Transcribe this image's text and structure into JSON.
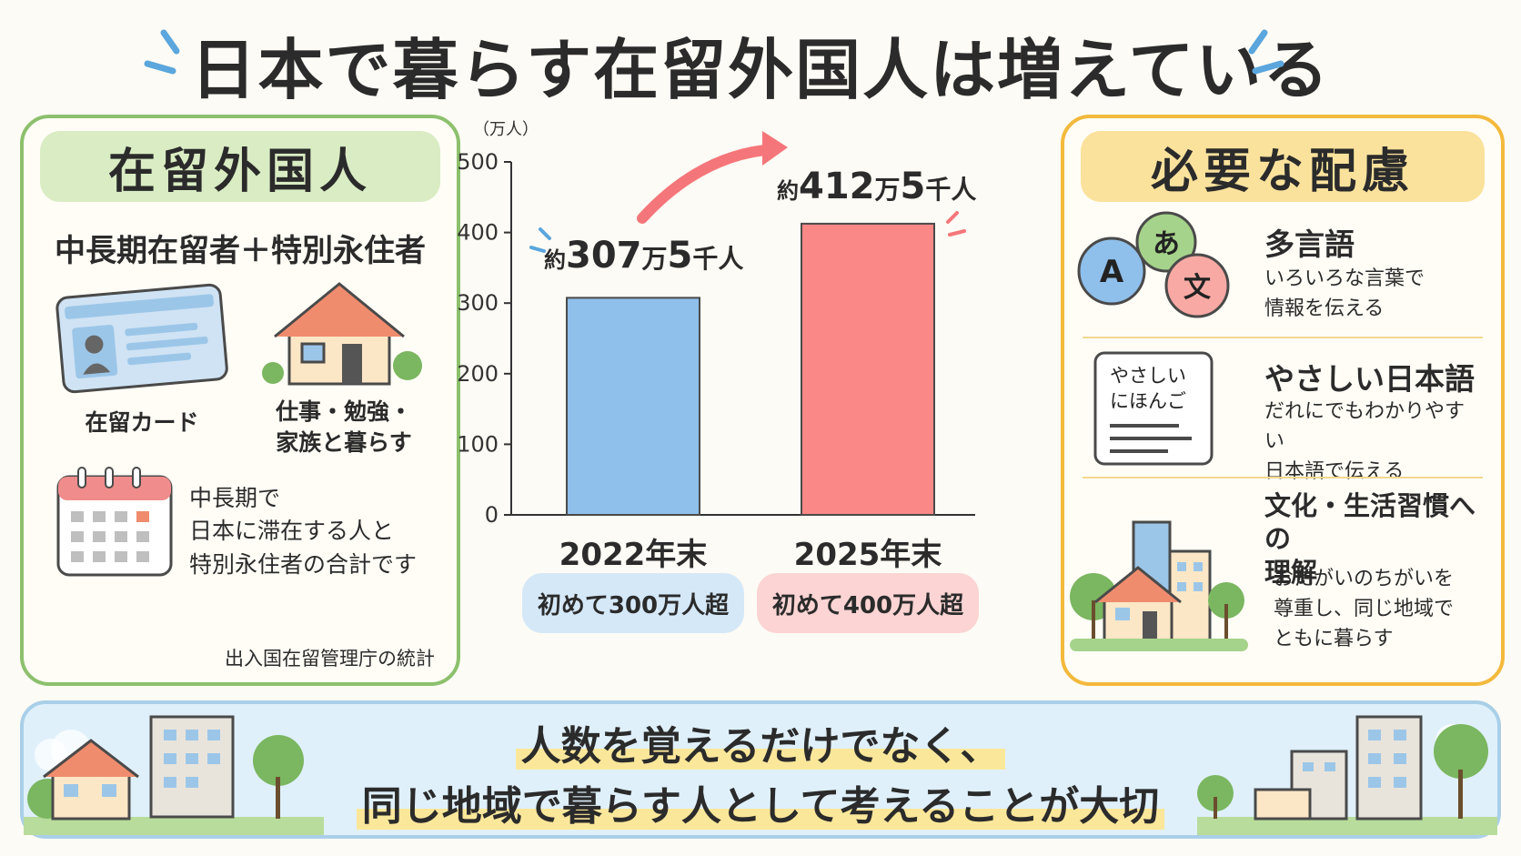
{
  "title": "日本で暮らす在留外国人は増えている",
  "left_panel": {
    "heading": "在留外国人",
    "subtitle": "中長期在留者＋特別永住者",
    "card_caption": "在留カード",
    "house_caption_line1": "仕事・勉強・",
    "house_caption_line2": "家族と暮らす",
    "note_line1": "中長期で",
    "note_line2": "日本に滞在する人と",
    "note_line3": "特別永住者の合計です",
    "source": "出入国在留管理庁の統計"
  },
  "chart_data": {
    "type": "bar",
    "ylabel": "（万人）",
    "ylim": [
      0,
      500
    ],
    "yticks": [
      0,
      100,
      200,
      300,
      400,
      500
    ],
    "categories": [
      "2022年末",
      "2025年末"
    ],
    "values": [
      307.5,
      412.5
    ],
    "colors": [
      "#8fbfeb",
      "#f98886"
    ],
    "callouts": [
      {
        "prefix": "約",
        "number": "307",
        "unit1": "万",
        "number2": "5",
        "unit2": "千人"
      },
      {
        "prefix": "約",
        "number": "412",
        "unit1": "万",
        "number2": "5",
        "unit2": "千人"
      }
    ],
    "pills": [
      "初めて300万人超",
      "初めて400万人超"
    ],
    "grid": false
  },
  "right_panel": {
    "heading": "必要な配慮",
    "items": [
      {
        "title": "多言語",
        "desc_line1": "いろいろな言葉で",
        "desc_line2": "情報を伝える",
        "icon_letters": [
          "A",
          "あ",
          "文"
        ]
      },
      {
        "title": "やさしい日本語",
        "desc_line1": "だれにでもわかりやすい",
        "desc_line2": "日本語で伝える",
        "icon_text_line1": "やさしい",
        "icon_text_line2": "にほんご"
      },
      {
        "title_line1": "文化・生活習慣への",
        "title_line2": "理解",
        "desc_line1": "おたがいのちがいを",
        "desc_line2": "尊重し、同じ地域で",
        "desc_line3": "ともに暮らす"
      }
    ]
  },
  "banner": {
    "line1": "人数を覚えるだけでなく、",
    "line2": "同じ地域で暮らす人として考えることが大切"
  },
  "colors": {
    "green": "#8cc06d",
    "yellow": "#f3b93c",
    "blue_bar": "#8fbfeb",
    "red_bar": "#f98886"
  }
}
